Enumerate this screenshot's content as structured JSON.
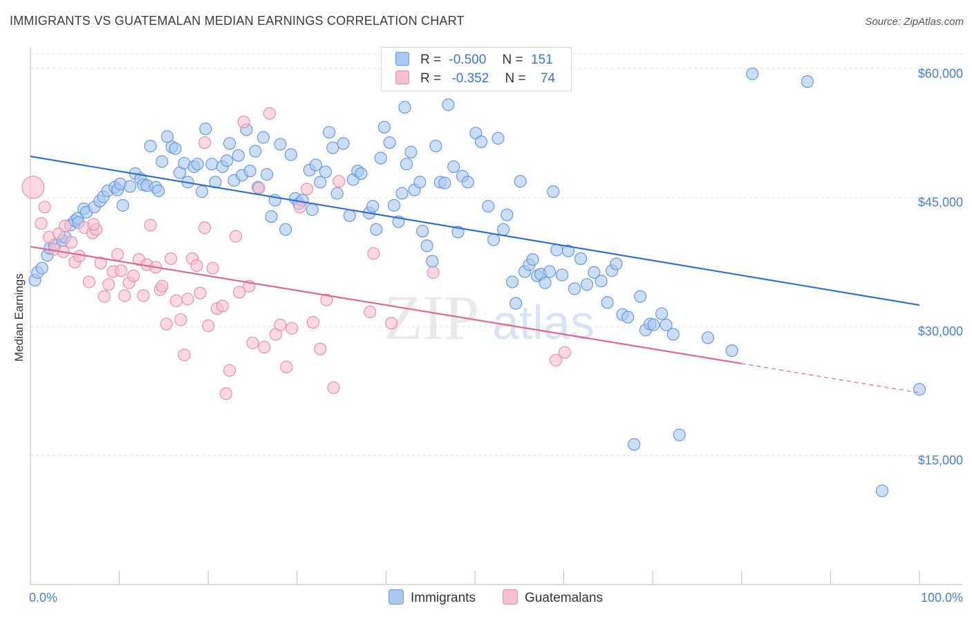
{
  "header": {
    "title": "IMMIGRANTS VS GUATEMALAN MEDIAN EARNINGS CORRELATION CHART",
    "source": "Source: ZipAtlas.com"
  },
  "legend": {
    "r_label": "R =",
    "n_label": "N =",
    "rows": [
      {
        "r": "-0.500",
        "n": "151",
        "color": "#a9c8ef",
        "border": "#6b9be0"
      },
      {
        "r": "-0.352",
        "n": "74",
        "color": "#f7c0d0",
        "border": "#e88aa8"
      }
    ]
  },
  "bottom_legend": {
    "items": [
      {
        "label": "Immigrants",
        "color": "#a9c8ef",
        "border": "#6b9be0"
      },
      {
        "label": "Guatemalans",
        "color": "#f7c0d0",
        "border": "#e88aa8"
      }
    ]
  },
  "colors": {
    "blue_fill": "#a9c8ef",
    "blue_stroke": "#5e93dd",
    "blue_line": "#2f6fd0",
    "pink_fill": "#f7c0d0",
    "pink_stroke": "#e58aa6",
    "pink_line": "#e0668e",
    "grid": "#dddddd",
    "tick_text": "#4a7fd0"
  },
  "chart_data": {
    "type": "scatter",
    "title": "IMMIGRANTS VS GUATEMALAN MEDIAN EARNINGS CORRELATION CHART",
    "xlabel": "",
    "ylabel": "Median Earnings",
    "xlim": [
      0,
      100
    ],
    "ylim": [
      0,
      63000
    ],
    "x_tick_labels": [
      "0.0%",
      "100.0%"
    ],
    "y_ticks": [
      15000,
      30000,
      45000,
      60000
    ],
    "y_tick_labels": [
      "$15,000",
      "$30,000",
      "$45,000",
      "$60,000"
    ],
    "grid": "horizontal dashed",
    "legend_position": "top-center",
    "series": [
      {
        "name": "Immigrants",
        "r": -0.5,
        "n": 151,
        "trend": {
          "x": [
            0,
            100
          ],
          "y": [
            49800,
            32500
          ]
        },
        "points": [
          [
            0.5,
            35400
          ],
          [
            0.8,
            36300
          ],
          [
            1.3,
            36800
          ],
          [
            1.9,
            38300
          ],
          [
            2.2,
            39100
          ],
          [
            2.7,
            39500
          ],
          [
            3.6,
            40000
          ],
          [
            3.9,
            40400
          ],
          [
            4.5,
            41800
          ],
          [
            5.0,
            42300
          ],
          [
            5.3,
            42600
          ],
          [
            5.4,
            42100
          ],
          [
            6.0,
            43700
          ],
          [
            6.3,
            43300
          ],
          [
            7.2,
            43900
          ],
          [
            7.8,
            44600
          ],
          [
            8.2,
            45100
          ],
          [
            8.7,
            45800
          ],
          [
            9.5,
            46200
          ],
          [
            9.8,
            45900
          ],
          [
            10.1,
            46600
          ],
          [
            10.4,
            44100
          ],
          [
            11.2,
            46300
          ],
          [
            11.8,
            47800
          ],
          [
            12.4,
            47200
          ],
          [
            12.7,
            46500
          ],
          [
            13.1,
            46400
          ],
          [
            13.5,
            51000
          ],
          [
            14.1,
            46200
          ],
          [
            14.4,
            45800
          ],
          [
            14.8,
            49200
          ],
          [
            15.4,
            52100
          ],
          [
            15.9,
            50900
          ],
          [
            16.3,
            50700
          ],
          [
            16.8,
            47900
          ],
          [
            17.3,
            49000
          ],
          [
            17.7,
            46800
          ],
          [
            18.4,
            48600
          ],
          [
            18.8,
            48900
          ],
          [
            19.3,
            45700
          ],
          [
            19.7,
            53000
          ],
          [
            20.4,
            48900
          ],
          [
            20.8,
            46800
          ],
          [
            21.6,
            48600
          ],
          [
            22.1,
            49300
          ],
          [
            22.4,
            51300
          ],
          [
            22.9,
            47000
          ],
          [
            23.4,
            49900
          ],
          [
            23.8,
            47600
          ],
          [
            24.3,
            52900
          ],
          [
            24.7,
            48100
          ],
          [
            25.3,
            50400
          ],
          [
            25.6,
            46200
          ],
          [
            26.2,
            52000
          ],
          [
            26.6,
            47700
          ],
          [
            27.1,
            42800
          ],
          [
            27.5,
            44700
          ],
          [
            28.1,
            51200
          ],
          [
            28.7,
            41300
          ],
          [
            29.3,
            50000
          ],
          [
            29.8,
            44900
          ],
          [
            30.2,
            44300
          ],
          [
            30.6,
            44700
          ],
          [
            31.4,
            48200
          ],
          [
            31.7,
            43600
          ],
          [
            32.1,
            48800
          ],
          [
            32.6,
            46800
          ],
          [
            33.2,
            48000
          ],
          [
            33.6,
            52600
          ],
          [
            34.0,
            50800
          ],
          [
            34.5,
            45500
          ],
          [
            35.2,
            51300
          ],
          [
            35.9,
            42900
          ],
          [
            36.3,
            47100
          ],
          [
            36.8,
            48100
          ],
          [
            37.2,
            47800
          ],
          [
            38.1,
            43200
          ],
          [
            38.5,
            44000
          ],
          [
            38.9,
            41300
          ],
          [
            39.4,
            49600
          ],
          [
            39.8,
            53200
          ],
          [
            40.4,
            51400
          ],
          [
            40.9,
            44100
          ],
          [
            41.4,
            42200
          ],
          [
            41.8,
            45500
          ],
          [
            42.3,
            48900
          ],
          [
            42.8,
            50300
          ],
          [
            43.2,
            45900
          ],
          [
            43.8,
            46800
          ],
          [
            44.1,
            41100
          ],
          [
            44.6,
            39400
          ],
          [
            45.2,
            37600
          ],
          [
            45.6,
            51000
          ],
          [
            46.1,
            46800
          ],
          [
            46.6,
            46700
          ],
          [
            47.0,
            55800
          ],
          [
            47.6,
            48600
          ],
          [
            48.1,
            41000
          ],
          [
            48.6,
            47500
          ],
          [
            49.2,
            46800
          ],
          [
            50.1,
            52500
          ],
          [
            50.7,
            51500
          ],
          [
            51.5,
            44000
          ],
          [
            52.1,
            40100
          ],
          [
            52.6,
            51900
          ],
          [
            53.2,
            41300
          ],
          [
            53.6,
            43000
          ],
          [
            54.2,
            35200
          ],
          [
            54.6,
            32700
          ],
          [
            55.1,
            46900
          ],
          [
            55.6,
            36400
          ],
          [
            56.1,
            37200
          ],
          [
            56.5,
            37800
          ],
          [
            57.0,
            35900
          ],
          [
            57.4,
            36100
          ],
          [
            57.9,
            35100
          ],
          [
            58.4,
            36400
          ],
          [
            58.8,
            45700
          ],
          [
            59.2,
            38900
          ],
          [
            59.8,
            36000
          ],
          [
            60.5,
            38800
          ],
          [
            61.2,
            34400
          ],
          [
            61.9,
            37900
          ],
          [
            62.6,
            34900
          ],
          [
            63.4,
            36300
          ],
          [
            64.2,
            35300
          ],
          [
            64.9,
            32800
          ],
          [
            65.4,
            36500
          ],
          [
            65.9,
            37300
          ],
          [
            66.6,
            31400
          ],
          [
            67.2,
            31100
          ],
          [
            67.9,
            16300
          ],
          [
            68.6,
            33500
          ],
          [
            69.2,
            29600
          ],
          [
            69.7,
            30300
          ],
          [
            70.1,
            30200
          ],
          [
            71.0,
            31500
          ],
          [
            71.5,
            30200
          ],
          [
            72.3,
            29100
          ],
          [
            73.0,
            17400
          ],
          [
            76.2,
            28700
          ],
          [
            78.9,
            27200
          ],
          [
            81.2,
            59400
          ],
          [
            87.4,
            58500
          ],
          [
            95.8,
            10900
          ],
          [
            100.0,
            22700
          ],
          [
            42.1,
            55500
          ]
        ]
      },
      {
        "name": "Guatemalans",
        "r": -0.352,
        "n": 74,
        "trend": {
          "x": [
            0,
            100
          ],
          "y": [
            39300,
            22300
          ]
        },
        "points": [
          [
            0.3,
            46200
          ],
          [
            1.2,
            42000
          ],
          [
            2.1,
            40400
          ],
          [
            2.7,
            39000
          ],
          [
            3.2,
            40800
          ],
          [
            3.7,
            38700
          ],
          [
            4.6,
            39800
          ],
          [
            5.0,
            37500
          ],
          [
            5.5,
            38200
          ],
          [
            6.1,
            41500
          ],
          [
            6.6,
            35200
          ],
          [
            7.0,
            40900
          ],
          [
            7.4,
            41300
          ],
          [
            7.9,
            37400
          ],
          [
            8.3,
            33500
          ],
          [
            8.8,
            34900
          ],
          [
            9.3,
            36400
          ],
          [
            9.8,
            38400
          ],
          [
            10.2,
            36500
          ],
          [
            10.6,
            33600
          ],
          [
            11.1,
            35100
          ],
          [
            11.6,
            35900
          ],
          [
            12.2,
            37800
          ],
          [
            12.7,
            33600
          ],
          [
            13.1,
            37200
          ],
          [
            13.5,
            41800
          ],
          [
            14.1,
            36900
          ],
          [
            14.6,
            34300
          ],
          [
            14.8,
            34700
          ],
          [
            15.3,
            30300
          ],
          [
            15.8,
            37900
          ],
          [
            16.4,
            33000
          ],
          [
            16.9,
            30800
          ],
          [
            17.3,
            26700
          ],
          [
            17.7,
            33200
          ],
          [
            18.2,
            37900
          ],
          [
            18.7,
            37100
          ],
          [
            19.1,
            33900
          ],
          [
            19.6,
            41500
          ],
          [
            20.0,
            30100
          ],
          [
            20.5,
            36800
          ],
          [
            21.0,
            32100
          ],
          [
            21.6,
            32400
          ],
          [
            22.0,
            22200
          ],
          [
            22.4,
            24900
          ],
          [
            23.1,
            40500
          ],
          [
            23.5,
            34000
          ],
          [
            24.0,
            53800
          ],
          [
            24.6,
            34700
          ],
          [
            25.0,
            28100
          ],
          [
            25.7,
            46100
          ],
          [
            26.3,
            27600
          ],
          [
            26.9,
            54800
          ],
          [
            27.6,
            29100
          ],
          [
            28.1,
            30200
          ],
          [
            28.8,
            25300
          ],
          [
            29.4,
            29800
          ],
          [
            30.3,
            43900
          ],
          [
            31.1,
            46000
          ],
          [
            31.8,
            30500
          ],
          [
            32.6,
            27400
          ],
          [
            33.3,
            33100
          ],
          [
            34.1,
            22900
          ],
          [
            34.7,
            46900
          ],
          [
            38.2,
            31700
          ],
          [
            38.6,
            38500
          ],
          [
            40.6,
            30400
          ],
          [
            45.3,
            36300
          ],
          [
            59.1,
            26100
          ],
          [
            60.1,
            27000
          ],
          [
            19.6,
            51400
          ],
          [
            7.1,
            41900
          ],
          [
            3.9,
            41700
          ],
          [
            1.6,
            43900
          ]
        ]
      }
    ]
  }
}
